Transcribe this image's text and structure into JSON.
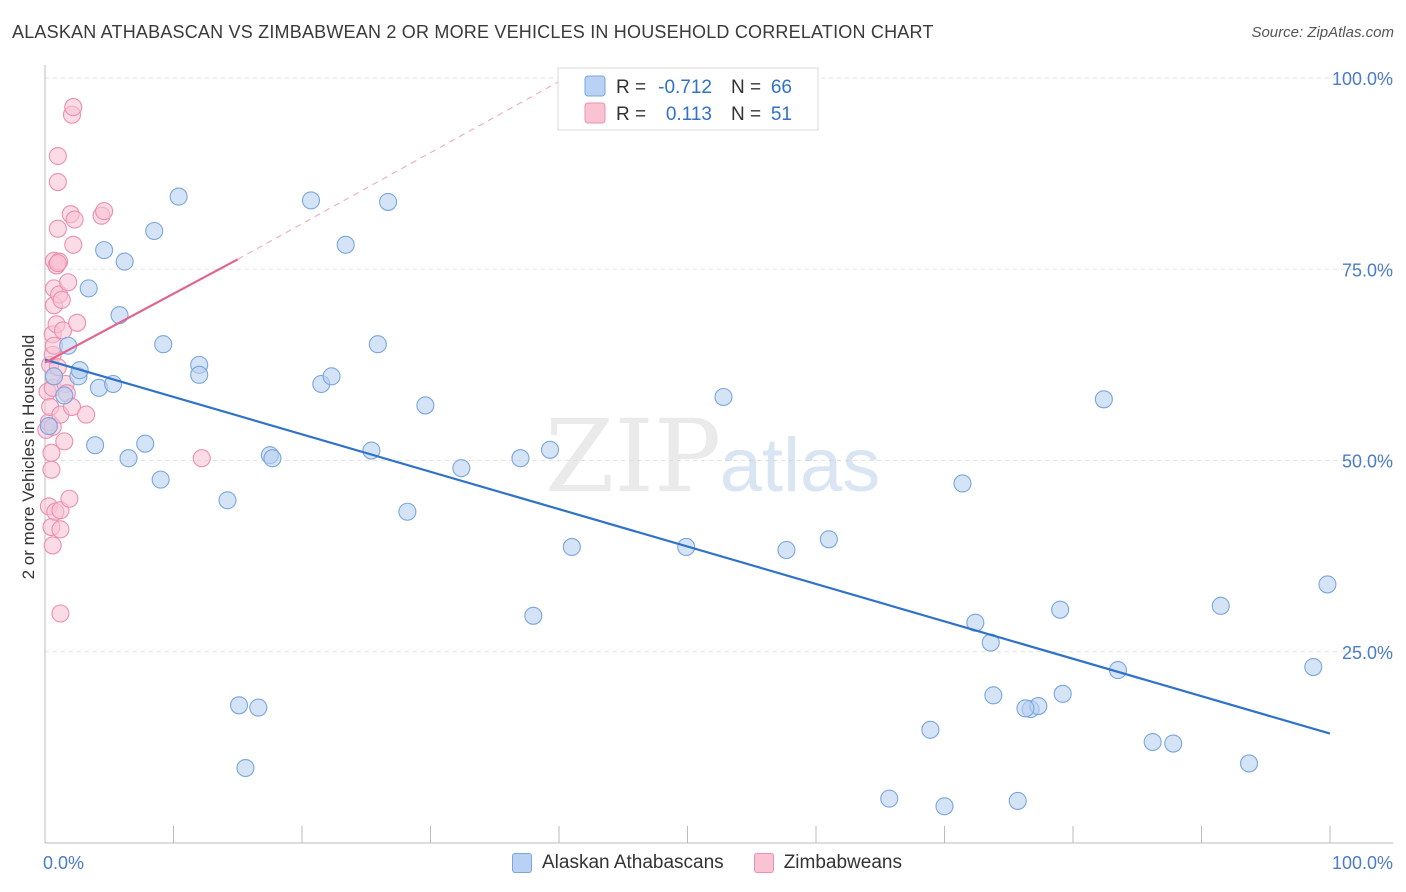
{
  "title": "ALASKAN ATHABASCAN VS ZIMBABWEAN 2 OR MORE VEHICLES IN HOUSEHOLD CORRELATION CHART",
  "source": "Source: ZipAtlas.com",
  "colors": {
    "blue_fill": "#b9d1f2",
    "blue_stroke": "#7aa6de",
    "blue_line": "#2f72c8",
    "pink_fill": "#f9c3d4",
    "pink_stroke": "#ec8fae",
    "pink_line": "#e0658e",
    "tick_label": "#4a7cc7",
    "grid": "#e2e2e2"
  },
  "legend": {
    "r_label": "R =",
    "n_label": "N =",
    "series": [
      {
        "name": "Alaskan Athabascans",
        "r": "-0.712",
        "n": "66"
      },
      {
        "name": "Zimbabweans",
        "r": "0.113",
        "n": "51"
      }
    ]
  },
  "chart_data": {
    "type": "scatter",
    "title": "ALASKAN ATHABASCAN VS ZIMBABWEAN 2 OR MORE VEHICLES IN HOUSEHOLD CORRELATION CHART",
    "xlabel": "",
    "ylabel": "2 or more Vehicles in Household",
    "xlim": [
      0,
      100
    ],
    "ylim": [
      0,
      100
    ],
    "x_tick_labels": [
      "0.0%",
      "100.0%"
    ],
    "y_ticks": [
      25,
      50,
      75,
      100
    ],
    "y_tick_labels": [
      "25.0%",
      "50.0%",
      "75.0%",
      "100.0%"
    ],
    "grid": true,
    "watermark": {
      "zip": "ZIP",
      "atlas": "atlas"
    },
    "series": [
      {
        "name": "Alaskan Athabascans",
        "trend": {
          "x": [
            0,
            100
          ],
          "y": [
            63.2,
            14.3
          ]
        },
        "points": [
          {
            "x": 0.3,
            "y": 54.5
          },
          {
            "x": 0.7,
            "y": 61.0
          },
          {
            "x": 1.5,
            "y": 58.5
          },
          {
            "x": 1.8,
            "y": 65.0
          },
          {
            "x": 2.6,
            "y": 61.0
          },
          {
            "x": 2.7,
            "y": 61.8
          },
          {
            "x": 3.4,
            "y": 72.5
          },
          {
            "x": 3.9,
            "y": 52.0
          },
          {
            "x": 4.2,
            "y": 59.5
          },
          {
            "x": 4.6,
            "y": 77.5
          },
          {
            "x": 5.3,
            "y": 60.0
          },
          {
            "x": 5.8,
            "y": 69.0
          },
          {
            "x": 6.2,
            "y": 76.0
          },
          {
            "x": 6.5,
            "y": 50.3
          },
          {
            "x": 7.8,
            "y": 52.2
          },
          {
            "x": 8.5,
            "y": 80.0
          },
          {
            "x": 9.0,
            "y": 47.5
          },
          {
            "x": 9.2,
            "y": 65.2
          },
          {
            "x": 10.4,
            "y": 84.5
          },
          {
            "x": 12.0,
            "y": 62.5
          },
          {
            "x": 12.0,
            "y": 61.2
          },
          {
            "x": 14.2,
            "y": 44.8
          },
          {
            "x": 15.1,
            "y": 18.0
          },
          {
            "x": 15.6,
            "y": 9.8
          },
          {
            "x": 16.6,
            "y": 17.7
          },
          {
            "x": 17.5,
            "y": 50.7
          },
          {
            "x": 17.7,
            "y": 50.3
          },
          {
            "x": 20.7,
            "y": 84.0
          },
          {
            "x": 21.5,
            "y": 60.0
          },
          {
            "x": 22.3,
            "y": 61.0
          },
          {
            "x": 23.4,
            "y": 78.2
          },
          {
            "x": 25.4,
            "y": 51.3
          },
          {
            "x": 25.9,
            "y": 65.2
          },
          {
            "x": 26.7,
            "y": 83.8
          },
          {
            "x": 28.2,
            "y": 43.3
          },
          {
            "x": 29.6,
            "y": 57.2
          },
          {
            "x": 32.4,
            "y": 49.0
          },
          {
            "x": 37.0,
            "y": 50.3
          },
          {
            "x": 38.0,
            "y": 29.7
          },
          {
            "x": 39.3,
            "y": 51.4
          },
          {
            "x": 41.0,
            "y": 38.7
          },
          {
            "x": 49.9,
            "y": 38.7
          },
          {
            "x": 52.8,
            "y": 58.3
          },
          {
            "x": 57.7,
            "y": 38.3
          },
          {
            "x": 61.0,
            "y": 39.7
          },
          {
            "x": 65.7,
            "y": 5.8
          },
          {
            "x": 68.9,
            "y": 14.8
          },
          {
            "x": 70.0,
            "y": 4.8
          },
          {
            "x": 71.4,
            "y": 47.0
          },
          {
            "x": 72.4,
            "y": 28.8
          },
          {
            "x": 73.6,
            "y": 26.2
          },
          {
            "x": 73.8,
            "y": 19.3
          },
          {
            "x": 75.7,
            "y": 5.5
          },
          {
            "x": 76.7,
            "y": 17.5
          },
          {
            "x": 77.3,
            "y": 17.9
          },
          {
            "x": 76.3,
            "y": 17.6
          },
          {
            "x": 79.0,
            "y": 30.5
          },
          {
            "x": 79.2,
            "y": 19.5
          },
          {
            "x": 82.4,
            "y": 58.0
          },
          {
            "x": 83.5,
            "y": 22.6
          },
          {
            "x": 86.2,
            "y": 13.2
          },
          {
            "x": 87.8,
            "y": 13.0
          },
          {
            "x": 91.5,
            "y": 31.0
          },
          {
            "x": 93.7,
            "y": 10.4
          },
          {
            "x": 98.7,
            "y": 23.0
          },
          {
            "x": 99.8,
            "y": 33.8
          }
        ]
      },
      {
        "name": "Zimbabweans",
        "trend": {
          "x": [
            0,
            15
          ],
          "y": [
            62.8,
            76.3
          ]
        },
        "trend_extension": {
          "x": [
            15,
            40.5
          ],
          "y": [
            76.3,
            100
          ]
        },
        "points": [
          {
            "x": 0.1,
            "y": 54.0
          },
          {
            "x": 0.2,
            "y": 59.0
          },
          {
            "x": 0.3,
            "y": 55.0
          },
          {
            "x": 0.3,
            "y": 44.0
          },
          {
            "x": 0.4,
            "y": 62.5
          },
          {
            "x": 0.4,
            "y": 57.0
          },
          {
            "x": 0.5,
            "y": 51.0
          },
          {
            "x": 0.5,
            "y": 48.8
          },
          {
            "x": 0.5,
            "y": 41.3
          },
          {
            "x": 0.6,
            "y": 66.5
          },
          {
            "x": 0.6,
            "y": 63.8
          },
          {
            "x": 0.6,
            "y": 59.5
          },
          {
            "x": 0.6,
            "y": 54.4
          },
          {
            "x": 0.6,
            "y": 38.9
          },
          {
            "x": 0.7,
            "y": 76.1
          },
          {
            "x": 0.7,
            "y": 72.5
          },
          {
            "x": 0.7,
            "y": 70.3
          },
          {
            "x": 0.7,
            "y": 65.0
          },
          {
            "x": 0.7,
            "y": 61.0
          },
          {
            "x": 0.8,
            "y": 43.3
          },
          {
            "x": 0.9,
            "y": 75.5
          },
          {
            "x": 0.9,
            "y": 67.8
          },
          {
            "x": 1.0,
            "y": 89.8
          },
          {
            "x": 1.0,
            "y": 86.4
          },
          {
            "x": 1.0,
            "y": 80.3
          },
          {
            "x": 1.0,
            "y": 62.2
          },
          {
            "x": 1.1,
            "y": 76.0
          },
          {
            "x": 1.1,
            "y": 71.7
          },
          {
            "x": 1.2,
            "y": 56.0
          },
          {
            "x": 1.2,
            "y": 43.5
          },
          {
            "x": 1.2,
            "y": 41.0
          },
          {
            "x": 1.2,
            "y": 30.0
          },
          {
            "x": 1.3,
            "y": 71.0
          },
          {
            "x": 1.4,
            "y": 67.0
          },
          {
            "x": 1.5,
            "y": 52.5
          },
          {
            "x": 1.6,
            "y": 60.0
          },
          {
            "x": 1.7,
            "y": 58.8
          },
          {
            "x": 1.8,
            "y": 73.3
          },
          {
            "x": 1.9,
            "y": 45.0
          },
          {
            "x": 2.0,
            "y": 82.2
          },
          {
            "x": 2.1,
            "y": 95.2
          },
          {
            "x": 2.1,
            "y": 57.0
          },
          {
            "x": 2.2,
            "y": 96.2
          },
          {
            "x": 2.2,
            "y": 78.2
          },
          {
            "x": 2.3,
            "y": 81.5
          },
          {
            "x": 2.5,
            "y": 68.0
          },
          {
            "x": 3.2,
            "y": 56.0
          },
          {
            "x": 4.4,
            "y": 82.0
          },
          {
            "x": 4.6,
            "y": 82.6
          },
          {
            "x": 12.2,
            "y": 50.3
          },
          {
            "x": 1.0,
            "y": 75.8
          }
        ]
      }
    ]
  }
}
